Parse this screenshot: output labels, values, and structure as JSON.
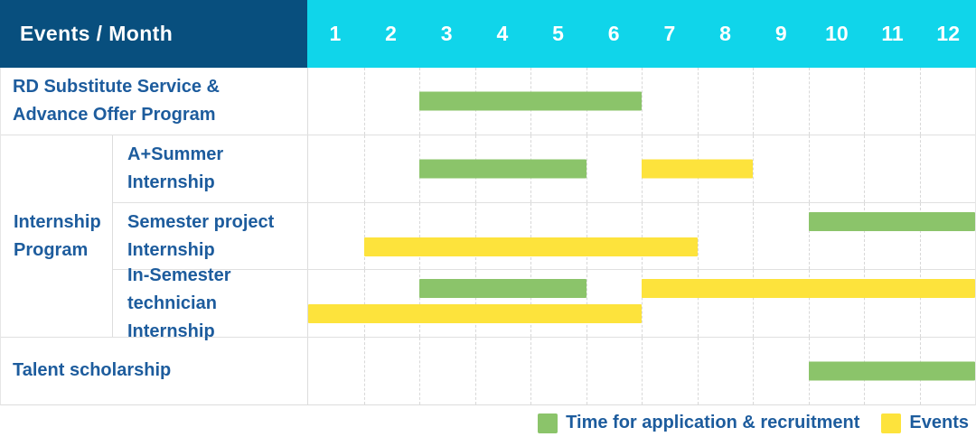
{
  "header": {
    "label": "Events / Month",
    "months": [
      "1",
      "2",
      "3",
      "4",
      "5",
      "6",
      "7",
      "8",
      "9",
      "10",
      "11",
      "12"
    ]
  },
  "colors": {
    "header_bg": "#084F7E",
    "months_bg": "#10D5EA",
    "green": "#8BC46A",
    "yellow": "#FDE33C",
    "text_blue": "#1D5C9D"
  },
  "gantt": {
    "group_label_lines": [
      "Internship",
      "Program"
    ],
    "rows": [
      {
        "label_lines": [
          "RD Substitute Service &",
          "Advance Offer Program"
        ],
        "lines": [
          [
            {
              "color": "green",
              "start": 3,
              "end": 6
            }
          ]
        ]
      },
      {
        "label_lines": [
          "A+Summer",
          "Internship"
        ],
        "lines": [
          [
            {
              "color": "green",
              "start": 3,
              "end": 5
            },
            {
              "color": "yellow",
              "start": 7,
              "end": 8
            }
          ]
        ]
      },
      {
        "label_lines": [
          "Semester project",
          "Internship"
        ],
        "lines": [
          [
            {
              "color": "green",
              "start": 10,
              "end": 12
            }
          ],
          [
            {
              "color": "yellow",
              "start": 2,
              "end": 7
            }
          ]
        ]
      },
      {
        "label_lines": [
          "In-Semester",
          "technician Internship"
        ],
        "lines": [
          [
            {
              "color": "green",
              "start": 3,
              "end": 5
            },
            {
              "color": "yellow",
              "start": 7,
              "end": 12
            }
          ],
          [
            {
              "color": "yellow",
              "start": 1,
              "end": 6
            }
          ]
        ]
      },
      {
        "label_lines": [
          "Talent scholarship"
        ],
        "lines": [
          [
            {
              "color": "green",
              "start": 10,
              "end": 12
            }
          ]
        ]
      }
    ]
  },
  "legend": {
    "items": [
      {
        "color": "green",
        "label": "Time for application & recruitment"
      },
      {
        "color": "yellow",
        "label": "Events"
      }
    ]
  },
  "chart_data": {
    "type": "table",
    "title": "Events / Month",
    "x_axis": {
      "label": "Month",
      "ticks": [
        1,
        2,
        3,
        4,
        5,
        6,
        7,
        8,
        9,
        10,
        11,
        12
      ],
      "range": [
        1,
        12
      ]
    },
    "legend": {
      "green": "Time for application & recruitment",
      "yellow": "Events"
    },
    "rows": [
      {
        "event": "RD Substitute Service & Advance Offer Program",
        "group": null,
        "application_recruitment_months": [
          [
            3,
            6
          ]
        ],
        "events_months": []
      },
      {
        "event": "A+Summer Internship",
        "group": "Internship Program",
        "application_recruitment_months": [
          [
            3,
            5
          ]
        ],
        "events_months": [
          [
            7,
            8
          ]
        ]
      },
      {
        "event": "Semester project Internship",
        "group": "Internship Program",
        "application_recruitment_months": [
          [
            10,
            12
          ]
        ],
        "events_months": [
          [
            2,
            7
          ]
        ]
      },
      {
        "event": "In-Semester technician Internship",
        "group": "Internship Program",
        "application_recruitment_months": [
          [
            3,
            5
          ]
        ],
        "events_months": [
          [
            7,
            12
          ],
          [
            1,
            6
          ]
        ]
      },
      {
        "event": "Talent scholarship",
        "group": null,
        "application_recruitment_months": [
          [
            10,
            12
          ]
        ],
        "events_months": []
      }
    ]
  }
}
